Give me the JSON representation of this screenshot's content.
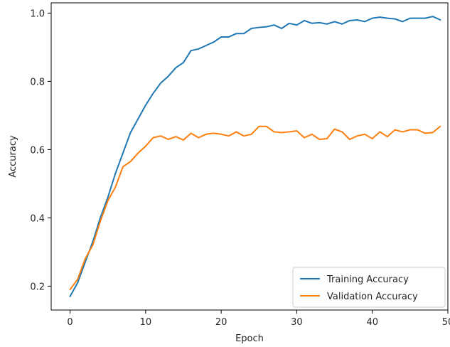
{
  "chart_data": {
    "type": "line",
    "xlabel": "Epoch",
    "ylabel": "Accuracy",
    "xlim": [
      -2.5,
      50
    ],
    "ylim": [
      0.13,
      1.03
    ],
    "xticks": [
      0,
      10,
      20,
      30,
      40,
      50
    ],
    "yticks": [
      0.2,
      0.4,
      0.6,
      0.8,
      1.0
    ],
    "xtick_labels": [
      "0",
      "10",
      "20",
      "30",
      "40",
      "50"
    ],
    "ytick_labels": [
      "0.2",
      "0.4",
      "0.6",
      "0.8",
      "1.0"
    ],
    "grid": false,
    "legend_position": "lower-right",
    "x": [
      0,
      1,
      2,
      3,
      4,
      5,
      6,
      7,
      8,
      9,
      10,
      11,
      12,
      13,
      14,
      15,
      16,
      17,
      18,
      19,
      20,
      21,
      22,
      23,
      24,
      25,
      26,
      27,
      28,
      29,
      30,
      31,
      32,
      33,
      34,
      35,
      36,
      37,
      38,
      39,
      40,
      41,
      42,
      43,
      44,
      45,
      46,
      47,
      48,
      49
    ],
    "series": [
      {
        "name": "Training Accuracy",
        "color": "#1f77b4",
        "values": [
          0.17,
          0.21,
          0.27,
          0.33,
          0.4,
          0.46,
          0.53,
          0.59,
          0.65,
          0.69,
          0.73,
          0.765,
          0.795,
          0.815,
          0.84,
          0.855,
          0.89,
          0.895,
          0.905,
          0.915,
          0.93,
          0.93,
          0.94,
          0.94,
          0.955,
          0.958,
          0.96,
          0.965,
          0.955,
          0.97,
          0.965,
          0.978,
          0.97,
          0.972,
          0.968,
          0.975,
          0.968,
          0.978,
          0.98,
          0.975,
          0.985,
          0.988,
          0.985,
          0.983,
          0.975,
          0.985,
          0.985,
          0.985,
          0.99,
          0.98
        ]
      },
      {
        "name": "Validation Accuracy",
        "color": "#ff7f0e",
        "values": [
          0.19,
          0.22,
          0.28,
          0.32,
          0.39,
          0.45,
          0.49,
          0.55,
          0.565,
          0.59,
          0.61,
          0.635,
          0.64,
          0.63,
          0.638,
          0.628,
          0.648,
          0.635,
          0.645,
          0.648,
          0.645,
          0.64,
          0.652,
          0.64,
          0.645,
          0.668,
          0.668,
          0.652,
          0.65,
          0.652,
          0.655,
          0.635,
          0.645,
          0.63,
          0.632,
          0.66,
          0.652,
          0.63,
          0.64,
          0.645,
          0.632,
          0.652,
          0.638,
          0.658,
          0.652,
          0.658,
          0.658,
          0.648,
          0.65,
          0.668
        ]
      }
    ]
  }
}
